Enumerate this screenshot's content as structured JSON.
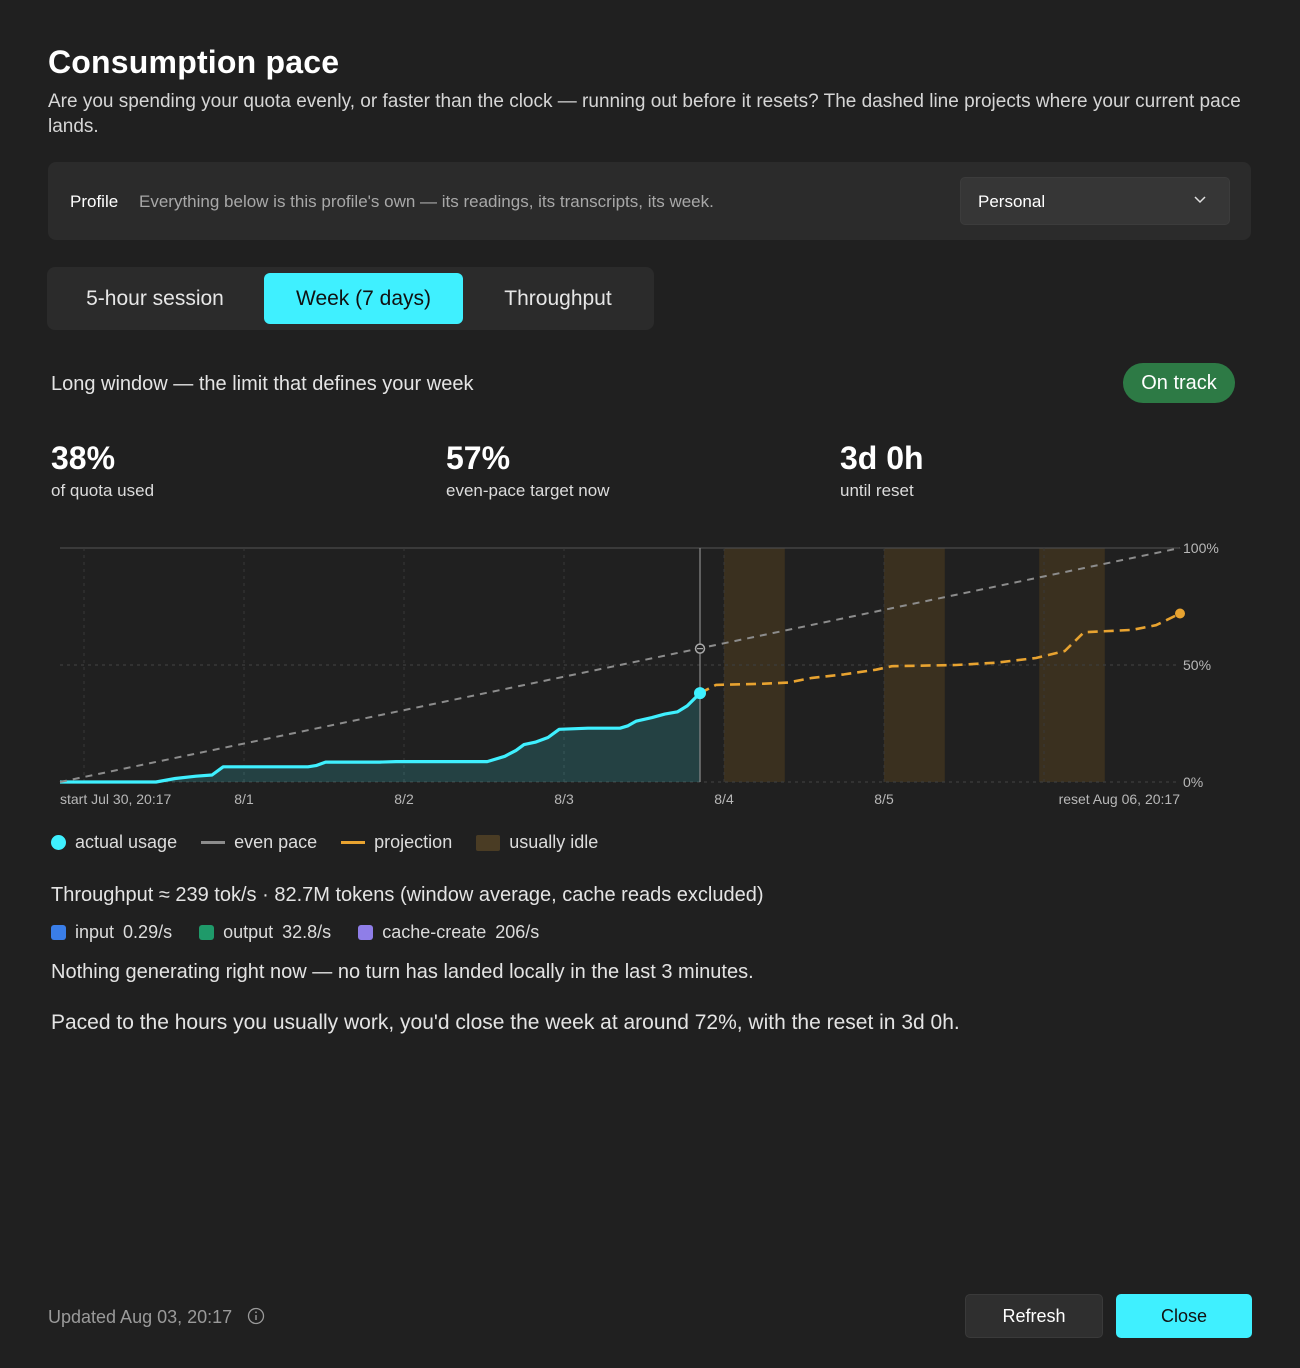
{
  "header": {
    "title": "Consumption pace",
    "subtitle": "Are you spending your quota evenly, or faster than the clock — running out before it resets? The dashed line projects where your current pace lands."
  },
  "profile": {
    "label": "Profile",
    "description": "Everything below is this profile's own — its readings, its transcripts, its week.",
    "selected": "Personal",
    "chevron_icon": "chevron-down-icon"
  },
  "tabs": [
    {
      "label": "5-hour session",
      "active": false
    },
    {
      "label": "Week (7 days)",
      "active": true
    },
    {
      "label": "Throughput",
      "active": false
    }
  ],
  "window": {
    "label": "Long window — the limit that defines your week",
    "badge": "On track",
    "badge_color": "#2d7a45"
  },
  "stats": [
    {
      "value": "38%",
      "label": "of quota used"
    },
    {
      "value": "57%",
      "label": "even-pace target now"
    },
    {
      "value": "3d 0h",
      "label": "until reset"
    }
  ],
  "chart_data": {
    "type": "line",
    "x_unit": "days since window start (Jul 30, 20:17)",
    "x_range": [
      0,
      7
    ],
    "ylim": [
      0,
      100
    ],
    "y_ticks": [
      {
        "value": 100,
        "label": "100%"
      },
      {
        "value": 50,
        "label": "50%"
      },
      {
        "value": 0,
        "label": "0%"
      }
    ],
    "x_ticks": [
      {
        "x": 0,
        "label": "start Jul 30, 20:17",
        "anchor": "start"
      },
      {
        "x": 1.15,
        "label": "8/1",
        "anchor": "middle"
      },
      {
        "x": 2.15,
        "label": "8/2",
        "anchor": "middle"
      },
      {
        "x": 3.15,
        "label": "8/3",
        "anchor": "middle"
      },
      {
        "x": 4.15,
        "label": "8/4",
        "anchor": "middle"
      },
      {
        "x": 5.15,
        "label": "8/5",
        "anchor": "middle"
      },
      {
        "x": 7,
        "label": "reset Aug 06, 20:17",
        "anchor": "end"
      }
    ],
    "grid_x": [
      0.15,
      1.15,
      2.15,
      3.15,
      4.15,
      5.15,
      6.15
    ],
    "now_x": 4,
    "even_pace_now": 57,
    "series": [
      {
        "name": "actual usage",
        "color": "#3ff0ff",
        "style": "solid-area",
        "points": [
          [
            0,
            0
          ],
          [
            0.6,
            0
          ],
          [
            0.72,
            1.5
          ],
          [
            0.85,
            2.5
          ],
          [
            0.95,
            3
          ],
          [
            1.02,
            6.5
          ],
          [
            1.55,
            6.5
          ],
          [
            1.6,
            7
          ],
          [
            1.66,
            8.5
          ],
          [
            2.0,
            8.5
          ],
          [
            2.1,
            8.7
          ],
          [
            2.67,
            8.7
          ],
          [
            2.78,
            11
          ],
          [
            2.85,
            13.5
          ],
          [
            2.9,
            16
          ],
          [
            2.97,
            17
          ],
          [
            3.05,
            19
          ],
          [
            3.12,
            22.5
          ],
          [
            3.3,
            23
          ],
          [
            3.5,
            23
          ],
          [
            3.55,
            24
          ],
          [
            3.6,
            26
          ],
          [
            3.7,
            27.5
          ],
          [
            3.78,
            29
          ],
          [
            3.86,
            30
          ],
          [
            3.92,
            32.5
          ],
          [
            4.0,
            38
          ]
        ]
      },
      {
        "name": "even pace",
        "color": "#8c8c8c",
        "style": "dashed",
        "points": [
          [
            0,
            0
          ],
          [
            7,
            100
          ]
        ]
      },
      {
        "name": "projection",
        "color": "#e8a330",
        "style": "dashed",
        "points": [
          [
            4.0,
            38
          ],
          [
            4.1,
            41.5
          ],
          [
            4.4,
            42
          ],
          [
            4.55,
            42.5
          ],
          [
            4.7,
            44.5
          ],
          [
            4.9,
            46
          ],
          [
            5.1,
            48
          ],
          [
            5.2,
            49.5
          ],
          [
            5.6,
            50
          ],
          [
            5.85,
            51
          ],
          [
            6.1,
            53
          ],
          [
            6.28,
            56
          ],
          [
            6.4,
            64
          ],
          [
            6.7,
            65
          ],
          [
            6.85,
            67
          ],
          [
            7.0,
            72
          ]
        ]
      }
    ],
    "idle_bands": [
      [
        4.15,
        4.53
      ],
      [
        5.15,
        5.53
      ],
      [
        6.12,
        6.53
      ]
    ],
    "idle_color": "#3a301f",
    "legend": [
      {
        "label": "actual usage",
        "kind": "dot",
        "color": "#3ff0ff"
      },
      {
        "label": "even pace",
        "kind": "line",
        "color": "#8c8c8c"
      },
      {
        "label": "projection",
        "kind": "line",
        "color": "#e8a330"
      },
      {
        "label": "usually idle",
        "kind": "box",
        "color": "#4a3c24"
      }
    ]
  },
  "throughput": {
    "summary": "Throughput ≈ 239 tok/s  ·  82.7M tokens (window average, cache reads excluded)",
    "items": [
      {
        "label": "input",
        "value": "0.29/s",
        "color": "#3a7ee8"
      },
      {
        "label": "output",
        "value": "32.8/s",
        "color": "#1f9a6a"
      },
      {
        "label": "cache-create",
        "value": "206/s",
        "color": "#8f7ee8"
      }
    ],
    "status": "Nothing generating right now — no turn has landed locally in the last 3 minutes.",
    "projection": "Paced to the hours you usually work, you'd close the week at around 72%, with the reset in 3d 0h."
  },
  "footer": {
    "updated": "Updated Aug 03, 20:17",
    "info_icon": "info-icon",
    "refresh_label": "Refresh",
    "close_label": "Close"
  }
}
